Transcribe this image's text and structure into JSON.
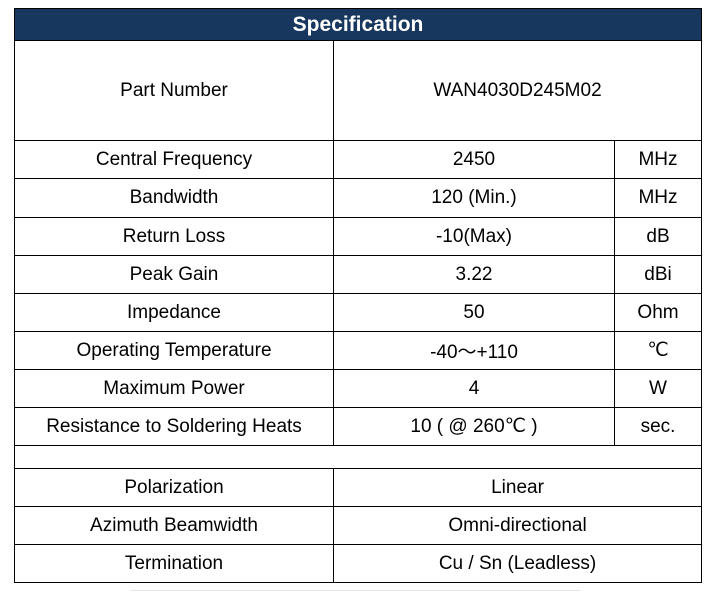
{
  "header": {
    "title": "Specification"
  },
  "part_number": [
    "Part Number",
    "WAN4030D245M02"
  ],
  "rows": [
    [
      "Central Frequency",
      "2450",
      "MHz"
    ],
    [
      "Bandwidth",
      "120 (Min.)",
      "MHz"
    ],
    [
      "Return Loss",
      "-10(Max)",
      "dB"
    ],
    [
      "Peak Gain",
      "3.22",
      "dBi"
    ],
    [
      "Impedance",
      "50",
      "Ohm"
    ],
    [
      "Operating Temperature",
      "-40～+110",
      "℃"
    ],
    [
      "Maximum Power",
      "4",
      "W"
    ],
    [
      "Resistance to Soldering Heats",
      "10 ( @ 260℃ )",
      "sec."
    ]
  ],
  "rows_b": [
    [
      "Polarization",
      "Linear"
    ],
    [
      "Azimuth Beamwidth",
      "Omni-directional"
    ],
    [
      "Termination",
      "Cu / Sn (Leadless)"
    ]
  ]
}
